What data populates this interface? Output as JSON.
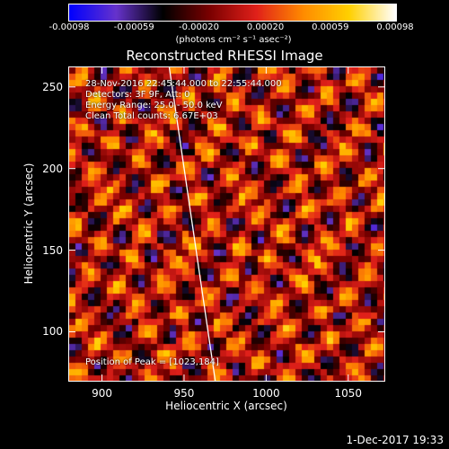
{
  "colorbar": {
    "tick_labels": [
      "-0.00098",
      "-0.00059",
      "-0.00020",
      "0.00020",
      "0.00059",
      "0.00098"
    ],
    "tick_values": [
      -0.00098,
      -0.00059,
      -0.0002,
      0.0002,
      0.00059,
      0.00098
    ],
    "unit_label": "(photons cm⁻² s⁻¹ asec⁻²)",
    "colors": [
      "#0000ff",
      "#6633cc",
      "#000000",
      "#7a0000",
      "#e0201a",
      "#ff8a00",
      "#ffd000",
      "#ffffff"
    ]
  },
  "title": "Reconstructed RHESSI Image",
  "annotations": {
    "time_range": "28-Nov-2016 22:45:44.000 to 22:55:44.000",
    "detectors": "Detectors: 3F 9F, Att: 0",
    "energy_range": "Energy Range: 25.0 - 50.0 keV",
    "algorithm": "Clean    Total counts: 6.67E+03",
    "peak": "Position of Peak = [1023,184]"
  },
  "axes": {
    "xlabel": "Heliocentric X (arcsec)",
    "ylabel": "Heliocentric Y (arcsec)",
    "x_ticks": [
      "900",
      "950",
      "1000",
      "1050"
    ],
    "x_tick_values": [
      900,
      950,
      1000,
      1050
    ],
    "y_ticks": [
      "100",
      "150",
      "200",
      "250"
    ],
    "y_tick_values": [
      100,
      150,
      200,
      250
    ],
    "xlim": [
      880,
      1072
    ],
    "ylim": [
      70,
      262
    ]
  },
  "limb_line": {
    "x": [
      941,
      969
    ],
    "y": [
      262,
      70
    ],
    "color": "#ffffff"
  },
  "footer_timestamp": "1-Dec-2017 19:33"
}
